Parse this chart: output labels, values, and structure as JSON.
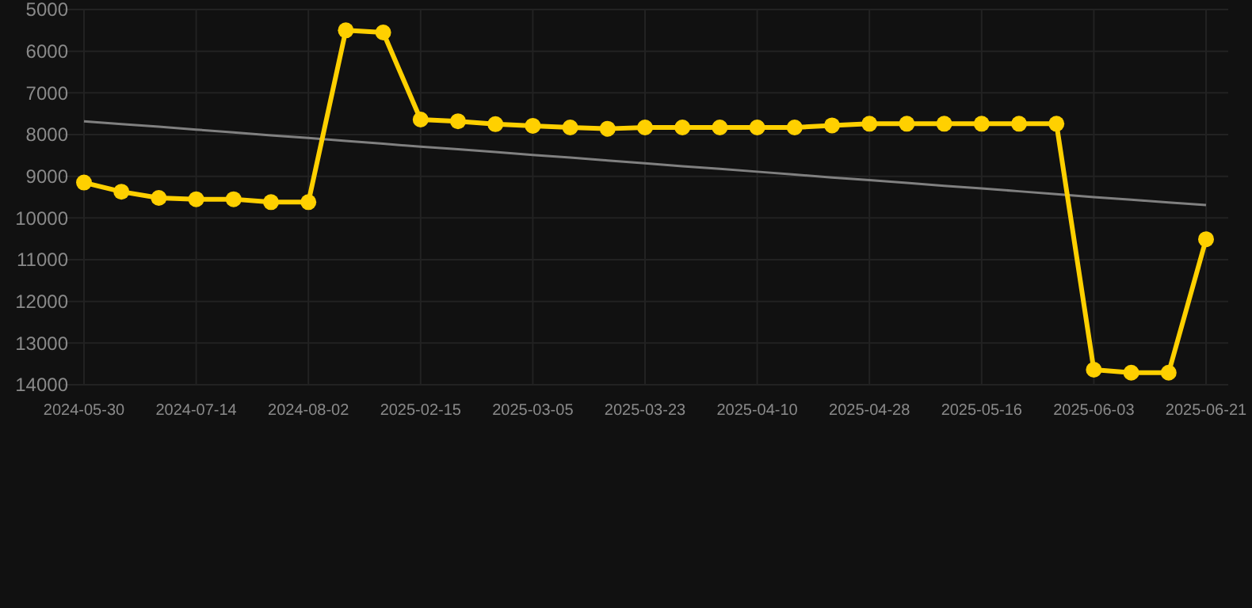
{
  "chart_data": {
    "type": "line",
    "categories": [
      "2024-05-30",
      null,
      null,
      "2024-07-14",
      null,
      null,
      "2024-08-02",
      null,
      null,
      "2025-02-15",
      null,
      null,
      "2025-03-05",
      null,
      null,
      "2025-03-23",
      null,
      null,
      "2025-04-10",
      null,
      null,
      "2025-04-28",
      null,
      null,
      "2025-05-16",
      null,
      null,
      "2025-06-03",
      null,
      null,
      "2025-06-21"
    ],
    "series": [
      {
        "color": "#ffd000",
        "marker": "circle",
        "values": [
          9150,
          9370,
          9520,
          9550,
          9550,
          9620,
          9620,
          5500,
          5550,
          7640,
          7680,
          7750,
          7790,
          7830,
          7860,
          7830,
          7830,
          7830,
          7830,
          7830,
          7780,
          7740,
          7740,
          7740,
          7740,
          7740,
          7740,
          13640,
          13710,
          13710,
          10510
        ]
      },
      {
        "color": "#808080",
        "marker": "none",
        "values": [
          7680,
          7750,
          7810,
          7880,
          7950,
          8020,
          8080,
          8150,
          8220,
          8290,
          8350,
          8420,
          8490,
          8550,
          8620,
          8690,
          8760,
          8820,
          8890,
          8960,
          9030,
          9090,
          9160,
          9230,
          9290,
          9360,
          9430,
          9500,
          9560,
          9630,
          9690
        ]
      }
    ],
    "ylim": [
      14000,
      5000
    ],
    "yticks": [
      5000,
      6000,
      7000,
      8000,
      9000,
      10000,
      11000,
      12000,
      13000,
      14000
    ],
    "grid": true
  }
}
